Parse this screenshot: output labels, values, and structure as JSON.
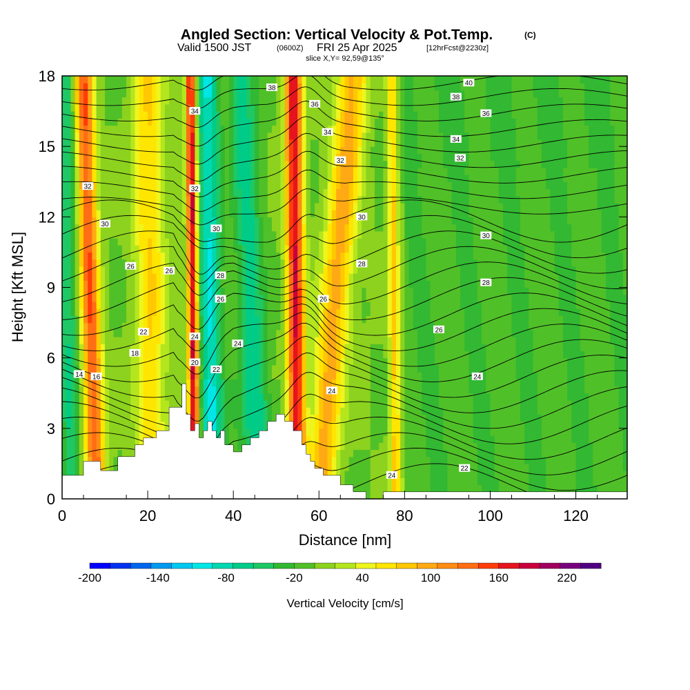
{
  "title": {
    "main": "Angled Section: Vertical Velocity & Pot.Temp.",
    "main_unit": "(C)",
    "valid_prefix": "Valid 1500 JST",
    "valid_utc": "(0600Z)",
    "valid_date": "FRI 25 Apr 2025",
    "fcst": "[12hrFcst@2230z]",
    "slice": "slice X,Y= 92,59@135°"
  },
  "colors": {
    "terrain": "#ffffff",
    "contour": "#000000",
    "scale": [
      "#0000ff",
      "#0033f0",
      "#0066ee",
      "#0099ee",
      "#00c8f0",
      "#00e6e6",
      "#00d8b0",
      "#00cc88",
      "#1ec864",
      "#32b832",
      "#50c028",
      "#8cd21e",
      "#b4e61e",
      "#eef51e",
      "#ffe600",
      "#ffc800",
      "#ffaa14",
      "#ff8c14",
      "#ff6e14",
      "#ff3c0a",
      "#e6141e",
      "#c8003c",
      "#a00060",
      "#78007e",
      "#500082"
    ]
  },
  "colorbar": {
    "tick_labels": [
      "-200",
      "-140",
      "-80",
      "-20",
      "40",
      "100",
      "160",
      "220"
    ],
    "title": "Vertical Velocity [cm/s]"
  },
  "chart_data": {
    "type": "heatmap",
    "xlabel": "Distance [nm]",
    "ylabel": "Height [Kft MSL]",
    "xlim": [
      0,
      132
    ],
    "ylim": [
      0,
      18
    ],
    "x_ticks": [
      0,
      20,
      40,
      60,
      80,
      100,
      120
    ],
    "y_ticks": [
      0,
      3,
      6,
      9,
      12,
      15,
      18
    ],
    "color_min": -200,
    "color_max": 250,
    "color_step": 20,
    "terrain_profile": {
      "x": [
        0,
        5,
        5,
        9,
        9,
        13,
        13,
        17,
        17,
        19,
        19,
        22,
        22,
        25,
        25,
        28,
        28,
        29,
        29,
        30,
        30,
        31,
        31,
        32,
        32,
        33,
        33,
        34,
        34,
        35,
        35,
        36,
        36,
        37,
        37,
        38,
        38,
        40,
        40,
        42,
        42,
        44,
        44,
        46,
        46,
        48,
        48,
        50,
        50,
        52,
        52,
        54,
        54,
        56,
        56,
        57,
        57,
        58,
        58,
        59,
        59,
        61,
        61,
        65,
        65,
        68,
        68,
        71,
        71,
        75,
        75,
        80,
        80,
        132
      ],
      "y": [
        1.0,
        1.0,
        1.6,
        1.6,
        1.2,
        1.2,
        1.8,
        1.8,
        2.3,
        2.3,
        2.6,
        2.6,
        2.9,
        2.9,
        3.9,
        3.9,
        4.9,
        4.9,
        3.6,
        3.6,
        2.9,
        2.9,
        3.2,
        3.2,
        2.6,
        2.6,
        2.9,
        2.9,
        3.3,
        3.3,
        2.9,
        2.9,
        2.6,
        2.6,
        2.9,
        2.9,
        2.3,
        2.3,
        2.0,
        2.0,
        2.3,
        2.3,
        2.6,
        2.6,
        2.9,
        2.9,
        3.3,
        3.3,
        3.6,
        3.6,
        3.3,
        3.3,
        2.9,
        2.9,
        2.3,
        2.3,
        1.9,
        1.9,
        1.6,
        1.6,
        1.3,
        1.3,
        1.0,
        1.0,
        0.6,
        0.6,
        0.3,
        0.3,
        0.0,
        0.0,
        0.3,
        0.3,
        0.3,
        0.3
      ]
    },
    "velocity_bands": [
      {
        "x_bottom": 8,
        "x_top": 5,
        "width": 2.2,
        "value": 160
      },
      {
        "x_bottom": 21,
        "x_top": 20,
        "width": 3.5,
        "value": 80
      },
      {
        "x_bottom": 31,
        "x_top": 30,
        "width": 1.2,
        "value": 210
      },
      {
        "x_bottom": 35,
        "x_top": 34,
        "width": 2.5,
        "value": -100
      },
      {
        "x_bottom": 55,
        "x_top": 54,
        "width": 2.0,
        "value": 200
      },
      {
        "x_bottom": 60,
        "x_top": 68,
        "width": 3.5,
        "value": 110
      },
      {
        "x_bottom": 78,
        "x_top": 77,
        "width": 1.2,
        "value": 90
      },
      {
        "x_bottom": 46,
        "x_top": 42,
        "width": 3.0,
        "value": -70
      },
      {
        "x_bottom": 2,
        "x_top": 1,
        "width": 2.0,
        "value": -60
      }
    ],
    "theta_labels": [
      {
        "x": 4,
        "y": 5.3,
        "text": "14"
      },
      {
        "x": 8,
        "y": 5.2,
        "text": "16"
      },
      {
        "x": 17,
        "y": 6.2,
        "text": "18"
      },
      {
        "x": 31,
        "y": 5.8,
        "text": "20"
      },
      {
        "x": 19,
        "y": 7.1,
        "text": "22"
      },
      {
        "x": 31,
        "y": 6.9,
        "text": "24"
      },
      {
        "x": 41,
        "y": 6.6,
        "text": "24"
      },
      {
        "x": 63,
        "y": 4.6,
        "text": "24"
      },
      {
        "x": 77,
        "y": 1.0,
        "text": "24"
      },
      {
        "x": 97,
        "y": 5.2,
        "text": "24"
      },
      {
        "x": 94,
        "y": 1.3,
        "text": "22"
      },
      {
        "x": 36,
        "y": 5.5,
        "text": "22"
      },
      {
        "x": 37,
        "y": 8.5,
        "text": "26"
      },
      {
        "x": 61,
        "y": 8.5,
        "text": "26"
      },
      {
        "x": 88,
        "y": 7.2,
        "text": "26"
      },
      {
        "x": 16,
        "y": 9.9,
        "text": "26"
      },
      {
        "x": 25,
        "y": 9.7,
        "text": "26"
      },
      {
        "x": 37,
        "y": 9.5,
        "text": "28"
      },
      {
        "x": 70,
        "y": 10.0,
        "text": "28"
      },
      {
        "x": 99,
        "y": 9.2,
        "text": "28"
      },
      {
        "x": 10,
        "y": 11.7,
        "text": "30"
      },
      {
        "x": 36,
        "y": 11.5,
        "text": "30"
      },
      {
        "x": 70,
        "y": 12.0,
        "text": "30"
      },
      {
        "x": 99,
        "y": 11.2,
        "text": "30"
      },
      {
        "x": 6,
        "y": 13.3,
        "text": "32"
      },
      {
        "x": 31,
        "y": 13.2,
        "text": "32"
      },
      {
        "x": 65,
        "y": 14.4,
        "text": "32"
      },
      {
        "x": 93,
        "y": 14.5,
        "text": "32"
      },
      {
        "x": 31,
        "y": 16.5,
        "text": "34"
      },
      {
        "x": 62,
        "y": 15.6,
        "text": "34"
      },
      {
        "x": 92,
        "y": 15.3,
        "text": "34"
      },
      {
        "x": 59,
        "y": 16.8,
        "text": "36"
      },
      {
        "x": 99,
        "y": 16.4,
        "text": "36"
      },
      {
        "x": 49,
        "y": 17.5,
        "text": "38"
      },
      {
        "x": 92,
        "y": 17.1,
        "text": "38"
      },
      {
        "x": 95,
        "y": 17.7,
        "text": "40"
      }
    ]
  }
}
